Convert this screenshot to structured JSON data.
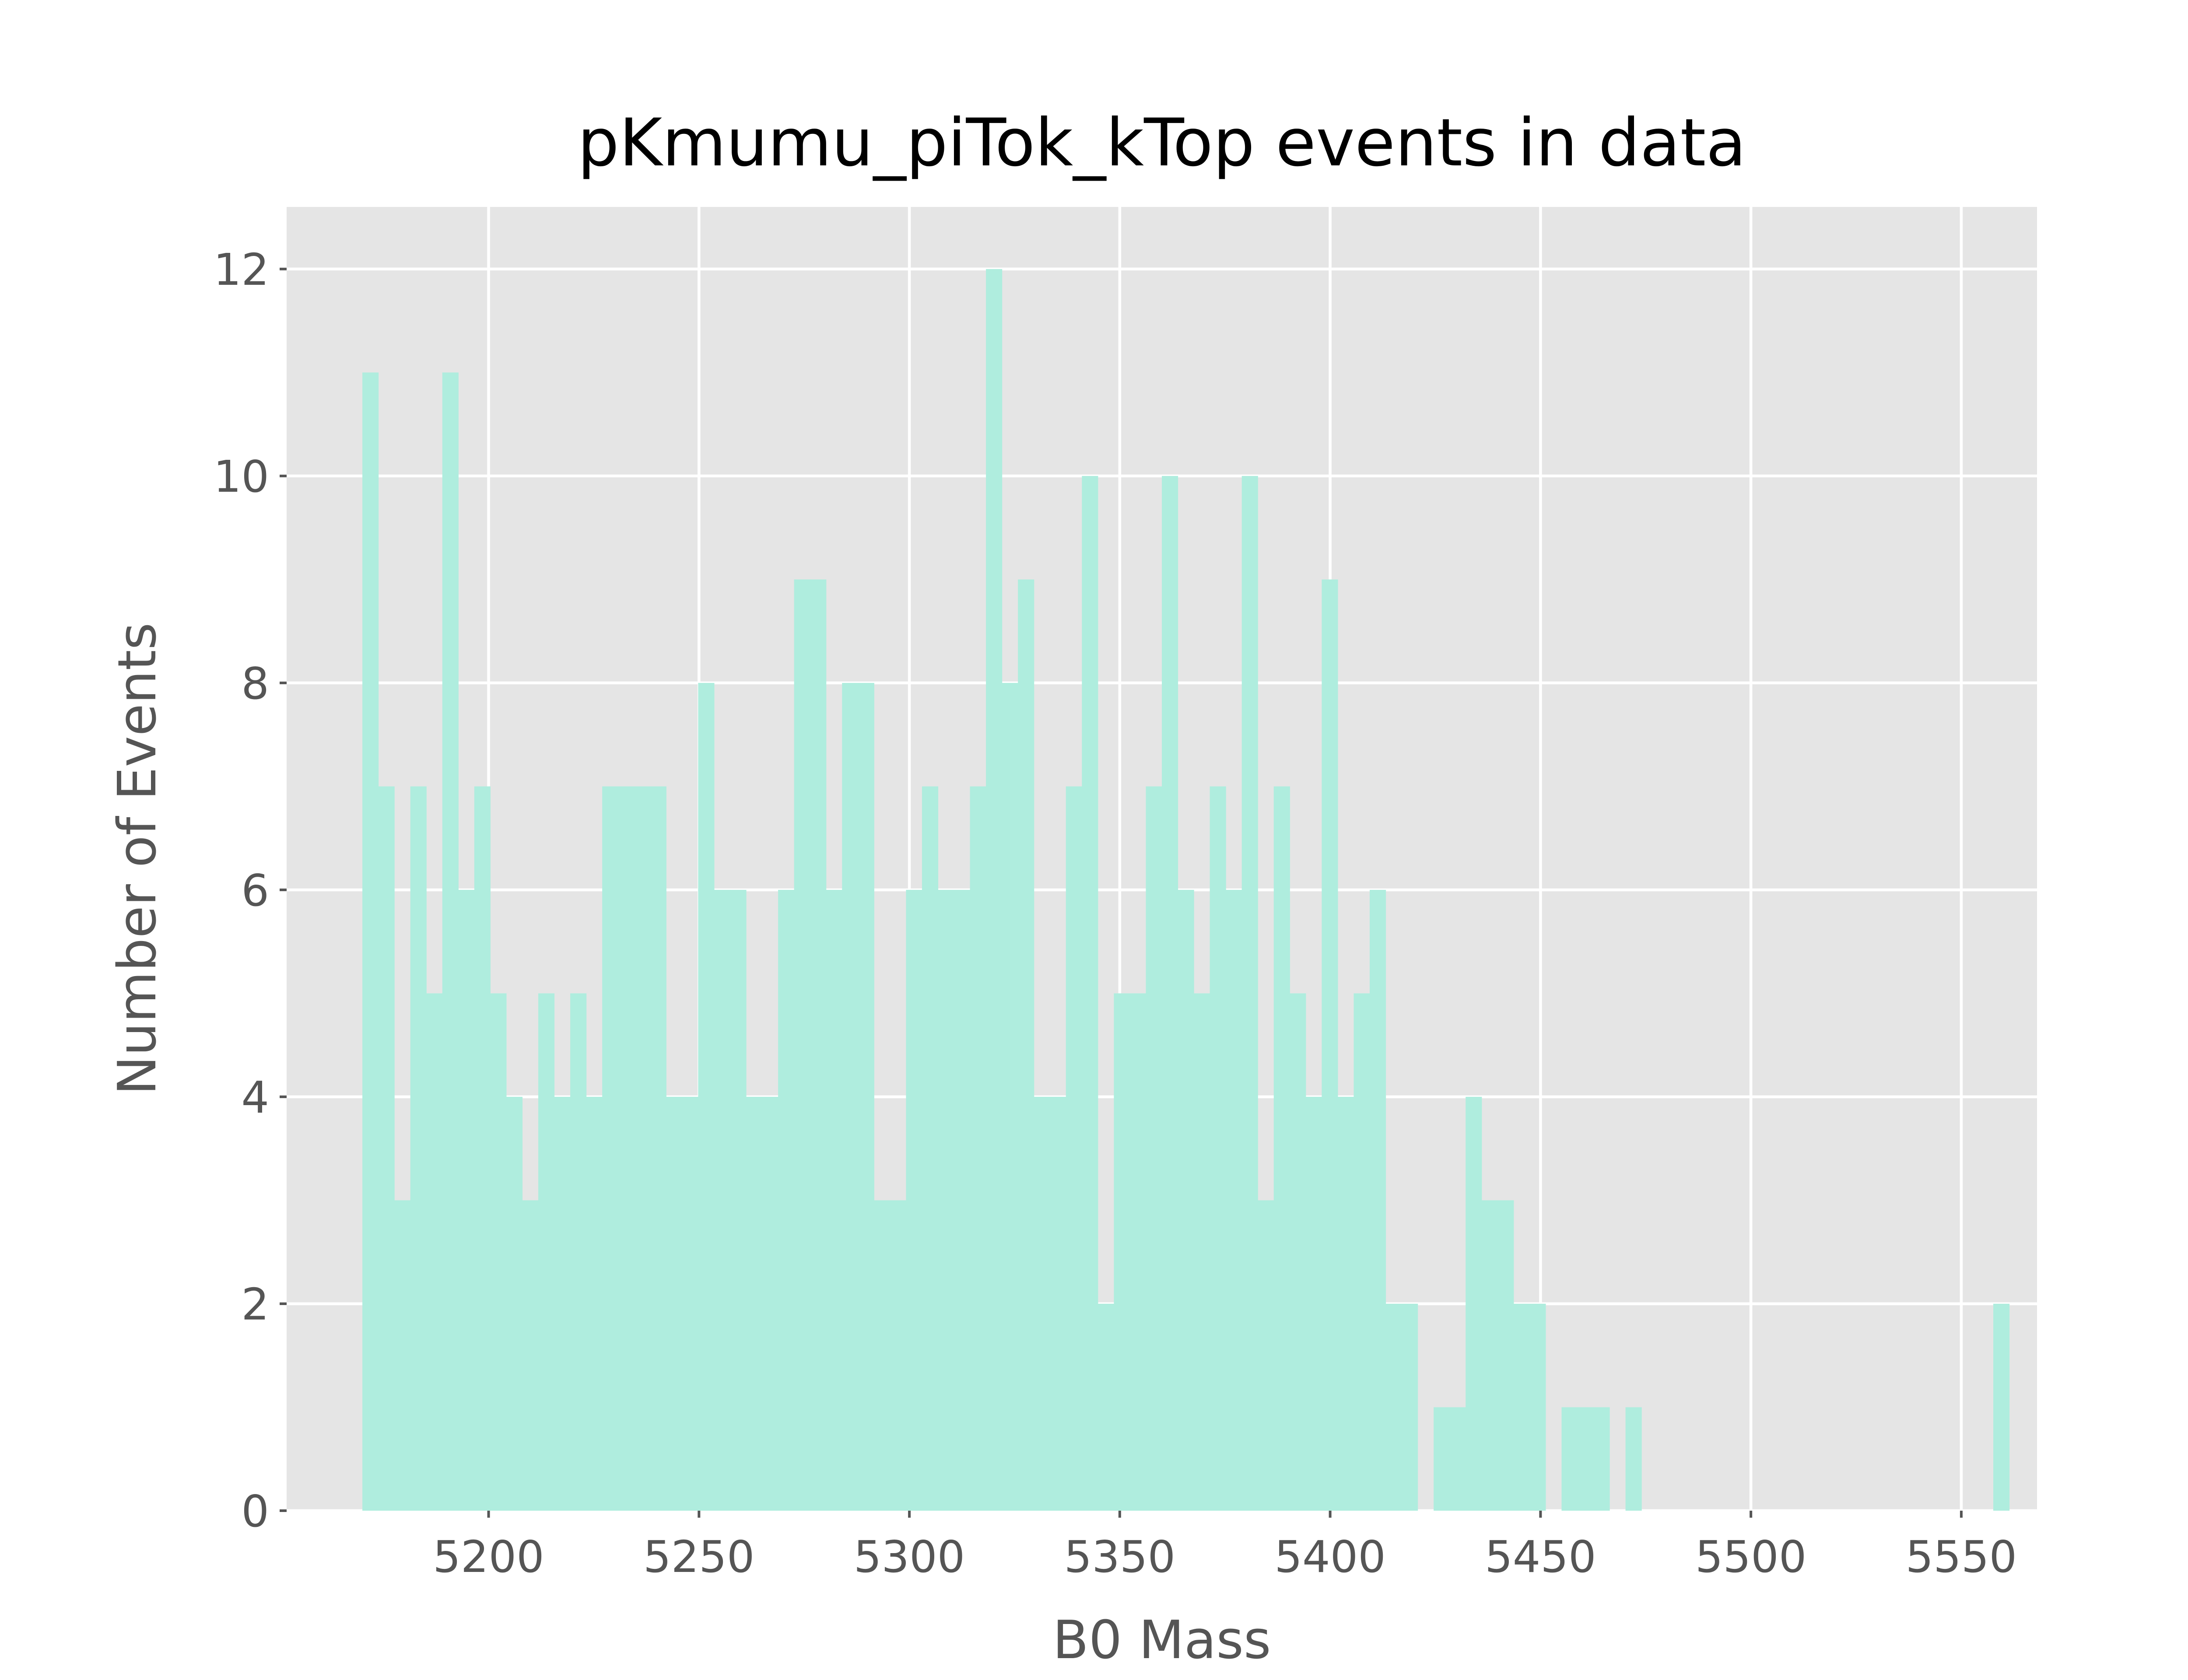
{
  "chart_data": {
    "type": "bar",
    "title": "pKmumu_piTok_kTop events in data",
    "xlabel": "B0 Mass",
    "ylabel": "Number of Events",
    "xlim": [
      5152,
      5568
    ],
    "ylim": [
      0,
      12.6
    ],
    "x_ticks": [
      5200,
      5250,
      5300,
      5350,
      5400,
      5450,
      5500,
      5550
    ],
    "x_tick_labels": [
      "5200",
      "5250",
      "5300",
      "5350",
      "5400",
      "5450",
      "5500",
      "5550"
    ],
    "y_ticks": [
      0,
      2,
      4,
      6,
      8,
      10,
      12
    ],
    "y_tick_labels": [
      "0",
      "2",
      "4",
      "6",
      "8",
      "10",
      "12"
    ],
    "grid": true,
    "color": "#AFEDDE",
    "bin_start": 5170,
    "bin_width": 3.8,
    "values": [
      11,
      7,
      3,
      7,
      5,
      11,
      6,
      7,
      5,
      4,
      3,
      5,
      4,
      5,
      4,
      7,
      7,
      7,
      7,
      4,
      4,
      8,
      6,
      6,
      4,
      4,
      6,
      9,
      9,
      6,
      8,
      8,
      3,
      3,
      6,
      7,
      6,
      6,
      7,
      12,
      8,
      9,
      4,
      4,
      7,
      10,
      2,
      5,
      5,
      7,
      10,
      6,
      5,
      7,
      6,
      10,
      3,
      7,
      5,
      4,
      9,
      4,
      5,
      6,
      2,
      2,
      0,
      1,
      1,
      4,
      3,
      3,
      2,
      2,
      0,
      1,
      1,
      1,
      0,
      1,
      0,
      0,
      0,
      0,
      0,
      0,
      0,
      0,
      0,
      0,
      0,
      0,
      0,
      0,
      0,
      0,
      0,
      0,
      0,
      0,
      0,
      0,
      2
    ]
  }
}
